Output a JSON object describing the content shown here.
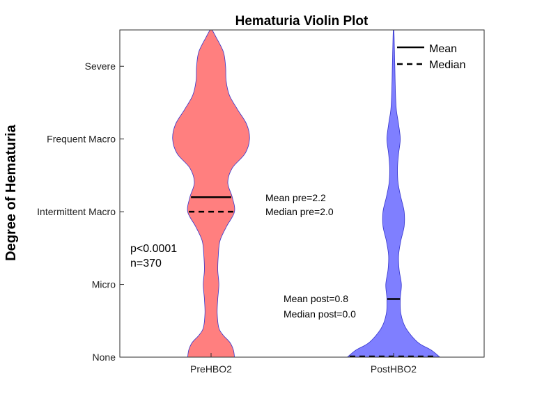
{
  "chart_data": {
    "type": "violin",
    "title": "Hematuria Violin Plot",
    "xlabel": "",
    "ylabel": "Degree of Hematuria",
    "categories": [
      "PreHBO2",
      "PostHBO2"
    ],
    "y_tick_labels": [
      "None",
      "Micro",
      "Intermittent Macro",
      "Frequent Macro",
      "Severe"
    ],
    "y_tick_values": [
      0,
      1,
      2,
      3,
      4
    ],
    "ylim": [
      0,
      4.5
    ],
    "grid": false,
    "legend": {
      "placement": "top-right",
      "entries": [
        {
          "label": "Mean",
          "style": "solid"
        },
        {
          "label": "Median",
          "style": "dashed"
        }
      ]
    },
    "series": [
      {
        "category": "PreHBO2",
        "color": "#ff7f7f",
        "edge_color": "#3333cc",
        "mean": 2.2,
        "median": 2.0,
        "density_profile": [
          [
            0.0,
            0.42
          ],
          [
            0.1,
            0.4
          ],
          [
            0.2,
            0.34
          ],
          [
            0.3,
            0.22
          ],
          [
            0.4,
            0.14
          ],
          [
            0.6,
            0.11
          ],
          [
            0.8,
            0.12
          ],
          [
            1.0,
            0.14
          ],
          [
            1.2,
            0.12
          ],
          [
            1.4,
            0.13
          ],
          [
            1.6,
            0.16
          ],
          [
            1.8,
            0.28
          ],
          [
            2.0,
            0.42
          ],
          [
            2.2,
            0.38
          ],
          [
            2.4,
            0.3
          ],
          [
            2.6,
            0.38
          ],
          [
            2.8,
            0.61
          ],
          [
            3.0,
            0.69
          ],
          [
            3.2,
            0.64
          ],
          [
            3.4,
            0.48
          ],
          [
            3.6,
            0.33
          ],
          [
            3.8,
            0.27
          ],
          [
            4.0,
            0.26
          ],
          [
            4.2,
            0.22
          ],
          [
            4.4,
            0.09
          ],
          [
            4.5,
            0.02
          ]
        ]
      },
      {
        "category": "PostHBO2",
        "color": "#7f7fff",
        "edge_color": "#3333cc",
        "mean": 0.8,
        "median": 0.0,
        "density_profile": [
          [
            0.0,
            0.83
          ],
          [
            0.1,
            0.67
          ],
          [
            0.2,
            0.44
          ],
          [
            0.4,
            0.22
          ],
          [
            0.6,
            0.13
          ],
          [
            0.8,
            0.12
          ],
          [
            1.0,
            0.14
          ],
          [
            1.2,
            0.1
          ],
          [
            1.4,
            0.09
          ],
          [
            1.6,
            0.13
          ],
          [
            1.8,
            0.19
          ],
          [
            2.0,
            0.19
          ],
          [
            2.2,
            0.13
          ],
          [
            2.4,
            0.08
          ],
          [
            2.6,
            0.07
          ],
          [
            2.8,
            0.09
          ],
          [
            3.0,
            0.12
          ],
          [
            3.2,
            0.09
          ],
          [
            3.4,
            0.05
          ],
          [
            3.6,
            0.035
          ],
          [
            3.8,
            0.028
          ],
          [
            4.0,
            0.022
          ],
          [
            4.2,
            0.016
          ],
          [
            4.4,
            0.01
          ],
          [
            4.5,
            0.005
          ]
        ]
      }
    ],
    "annotations": {
      "pre_mean": "Mean pre=2.2",
      "pre_median": "Median pre=2.0",
      "post_mean": "Mean post=0.8",
      "post_median": "Median post=0.0",
      "p_value": "p<0.0001",
      "n": "n=370"
    }
  }
}
